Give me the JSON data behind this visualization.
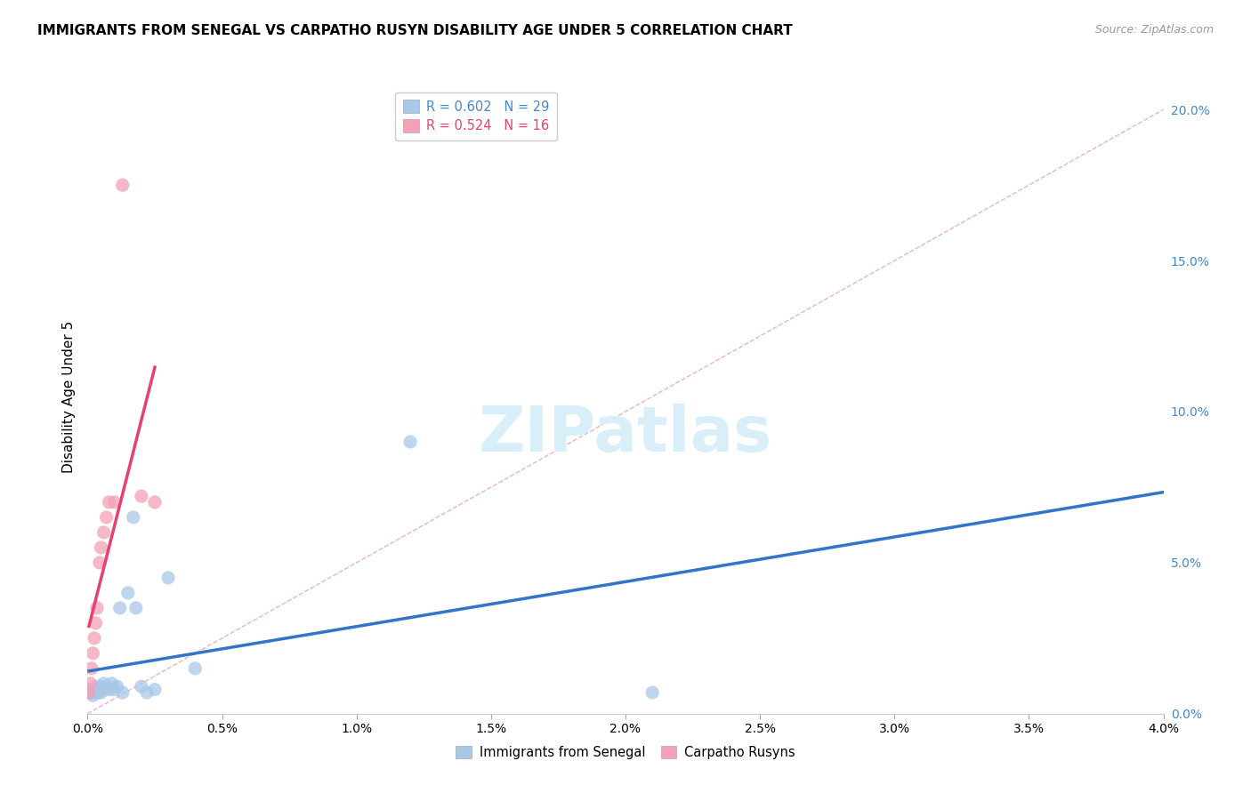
{
  "title": "IMMIGRANTS FROM SENEGAL VS CARPATHO RUSYN DISABILITY AGE UNDER 5 CORRELATION CHART",
  "source": "Source: ZipAtlas.com",
  "ylabel": "Disability Age Under 5",
  "xlim": [
    0.0,
    0.04
  ],
  "ylim": [
    0.0,
    0.21
  ],
  "x_ticks": [
    0.0,
    0.005,
    0.01,
    0.015,
    0.02,
    0.025,
    0.03,
    0.035,
    0.04
  ],
  "y_ticks": [
    0.0,
    0.05,
    0.1,
    0.15,
    0.2
  ],
  "legend_entry_blue": "R = 0.602   N = 29",
  "legend_entry_pink": "R = 0.524   N = 16",
  "legend_labels_bottom": [
    "Immigrants from Senegal",
    "Carpatho Rusyns"
  ],
  "senegal_color": "#a8c8e8",
  "rusyn_color": "#f4a0b5",
  "trendline_senegal_color": "#3374c8",
  "trendline_rusyn_color": "#e84070",
  "diagonal_color": "#e8a0b0",
  "background_color": "#ffffff",
  "grid_color": "#e0e0e0",
  "watermark_color": "#d8eef8",
  "senegal_x": [
    5e-05,
    0.0001,
    0.00015,
    0.0002,
    0.00025,
    0.0003,
    0.00035,
    0.0004,
    0.00045,
    0.0005,
    0.0005,
    0.0006,
    0.0007,
    0.0008,
    0.0009,
    0.001,
    0.0011,
    0.0012,
    0.0013,
    0.0015,
    0.0017,
    0.0018,
    0.002,
    0.0022,
    0.0025,
    0.003,
    0.004,
    0.012,
    0.021
  ],
  "senegal_y": [
    0.008,
    0.007,
    0.007,
    0.006,
    0.008,
    0.007,
    0.009,
    0.007,
    0.008,
    0.009,
    0.007,
    0.01,
    0.009,
    0.008,
    0.01,
    0.008,
    0.009,
    0.035,
    0.007,
    0.04,
    0.065,
    0.035,
    0.009,
    0.007,
    0.008,
    0.045,
    0.015,
    0.09,
    0.007
  ],
  "rusyn_x": [
    5e-05,
    0.0001,
    0.00015,
    0.0002,
    0.00025,
    0.0003,
    0.00035,
    0.00045,
    0.0005,
    0.0006,
    0.0007,
    0.0008,
    0.001,
    0.0013,
    0.002,
    0.0025
  ],
  "rusyn_y": [
    0.007,
    0.01,
    0.015,
    0.02,
    0.025,
    0.03,
    0.035,
    0.05,
    0.055,
    0.06,
    0.065,
    0.07,
    0.07,
    0.175,
    0.072,
    0.07
  ]
}
